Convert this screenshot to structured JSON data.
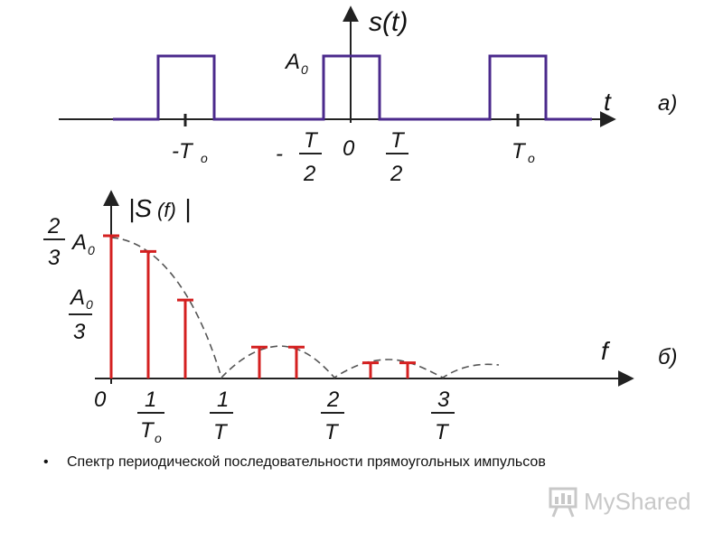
{
  "top_plot": {
    "title": "s(t)",
    "axis_label": "t",
    "panel_label": "а)",
    "amplitude_label": "A",
    "amplitude_sub": "0",
    "ticks": {
      "neg_T0": "-T",
      "neg_T0_sub": "o",
      "neg_half_sign": "-",
      "T_num": "T",
      "den_2": "2",
      "zero": "0",
      "T0": "T",
      "T0_sub": "o"
    }
  },
  "bottom_plot": {
    "title_open": "|S",
    "title_arg": "(f)",
    "title_close": "|",
    "axis_label": "f",
    "panel_label": "б)",
    "y_label_top_num": "2",
    "y_label_top_den": "3",
    "y_label_top_A": "A",
    "y_label_top_sub": "0",
    "y_label_mid_A": "A",
    "y_label_mid_sub": "0",
    "y_label_mid_den": "3",
    "x_ticks": {
      "zero": "0",
      "one": "1",
      "T0": "T",
      "T0_sub": "o",
      "T": "T",
      "two": "2",
      "three": "3"
    },
    "spectral_lines": [
      1.0,
      0.89,
      0.55,
      0.22,
      0.22,
      0.11,
      0.11
    ]
  },
  "caption": "Спектр периодической последовательности прямоугольных импульсов",
  "bullet": "•",
  "logo": {
    "text": "MyShared",
    "icon": "presentation-board-icon"
  },
  "colors": {
    "pulse": "#4b2a8c",
    "lines": "#d42020",
    "axes": "#222222",
    "envelope": "#555555"
  }
}
